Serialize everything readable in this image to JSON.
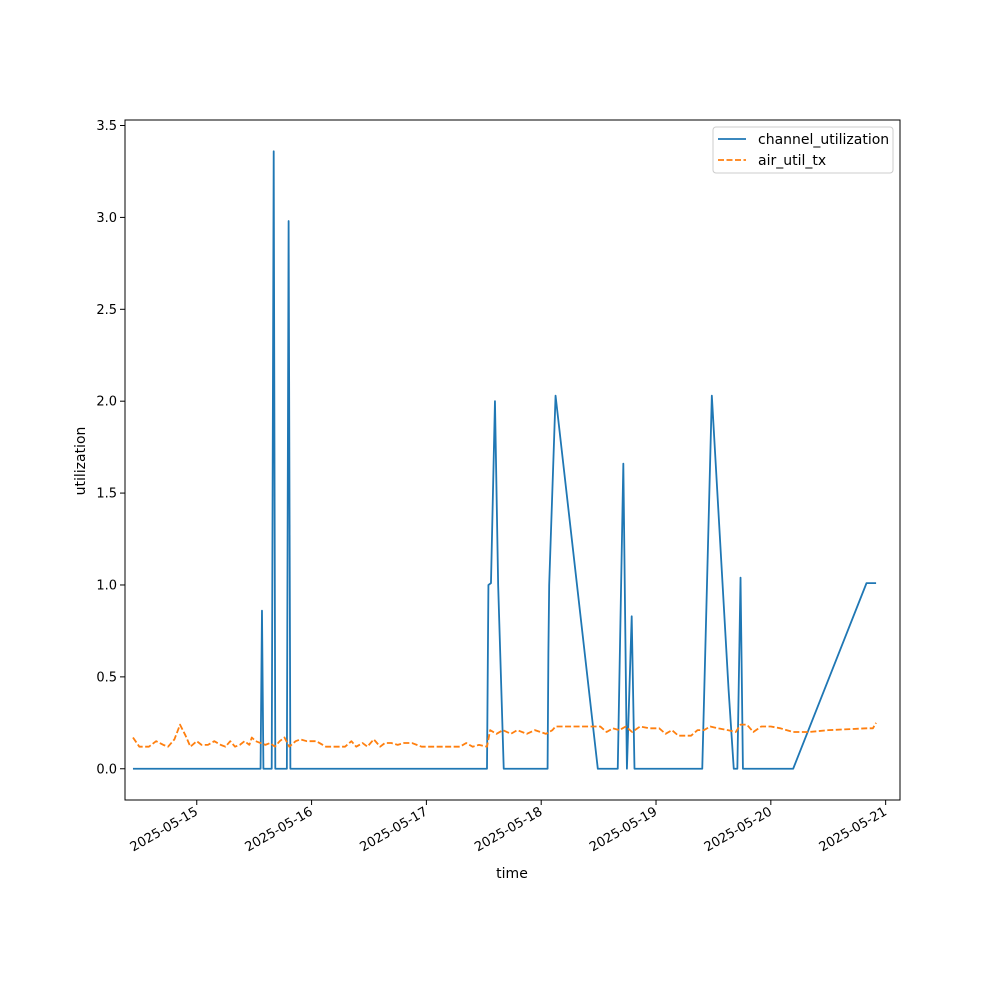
{
  "chart_data": {
    "type": "line",
    "xlabel": "time",
    "ylabel": "utilization",
    "xlim": [
      "2025-05-14T09:00",
      "2025-05-21T03:00"
    ],
    "ylim": [
      -0.17,
      3.53
    ],
    "x_ticks": [
      "2025-05-15",
      "2025-05-16",
      "2025-05-17",
      "2025-05-18",
      "2025-05-19",
      "2025-05-20",
      "2025-05-21"
    ],
    "y_ticks": [
      "0.0",
      "0.5",
      "1.0",
      "1.5",
      "2.0",
      "2.5",
      "3.0",
      "3.5"
    ],
    "legend": {
      "position": "top-right",
      "entries": [
        "channel_utilization",
        "air_util_tx"
      ]
    },
    "grid": false,
    "series": [
      {
        "name": "channel_utilization",
        "color": "#1f77b4",
        "style": "solid",
        "points": [
          [
            "2025-05-14T10:40",
            0.0
          ],
          [
            "2025-05-15T13:20",
            0.0
          ],
          [
            "2025-05-15T13:38",
            0.86
          ],
          [
            "2025-05-15T13:56",
            0.0
          ],
          [
            "2025-05-15T15:40",
            0.0
          ],
          [
            "2025-05-15T16:05",
            3.36
          ],
          [
            "2025-05-15T16:25",
            0.0
          ],
          [
            "2025-05-15T18:50",
            0.0
          ],
          [
            "2025-05-15T19:12",
            2.98
          ],
          [
            "2025-05-15T19:34",
            0.0
          ],
          [
            "2025-05-17T12:40",
            0.0
          ],
          [
            "2025-05-17T12:58",
            1.0
          ],
          [
            "2025-05-17T13:30",
            1.01
          ],
          [
            "2025-05-17T14:20",
            2.0
          ],
          [
            "2025-05-17T15:00",
            1.0
          ],
          [
            "2025-05-17T16:10",
            0.0
          ],
          [
            "2025-05-18T01:20",
            0.0
          ],
          [
            "2025-05-18T01:30",
            0.63
          ],
          [
            "2025-05-18T01:40",
            1.0
          ],
          [
            "2025-05-18T03:00",
            2.03
          ],
          [
            "2025-05-18T11:50",
            0.0
          ],
          [
            "2025-05-18T16:00",
            0.0
          ],
          [
            "2025-05-18T17:10",
            1.66
          ],
          [
            "2025-05-18T17:55",
            0.0
          ],
          [
            "2025-05-18T18:55",
            0.83
          ],
          [
            "2025-05-18T19:30",
            0.0
          ],
          [
            "2025-05-19T09:40",
            0.0
          ],
          [
            "2025-05-19T11:40",
            2.03
          ],
          [
            "2025-05-19T15:10",
            0.43
          ],
          [
            "2025-05-19T16:15",
            0.0
          ],
          [
            "2025-05-19T17:00",
            0.0
          ],
          [
            "2025-05-19T17:40",
            1.04
          ],
          [
            "2025-05-19T18:10",
            0.0
          ],
          [
            "2025-05-20T04:40",
            0.0
          ],
          [
            "2025-05-20T20:00",
            1.01
          ],
          [
            "2025-05-20T22:00",
            1.01
          ]
        ]
      },
      {
        "name": "air_util_tx",
        "color": "#ff7f0e",
        "style": "dashed",
        "points": [
          [
            "2025-05-14T10:40",
            0.17
          ],
          [
            "2025-05-14T12:00",
            0.12
          ],
          [
            "2025-05-14T14:00",
            0.12
          ],
          [
            "2025-05-14T15:30",
            0.15
          ],
          [
            "2025-05-14T17:00",
            0.13
          ],
          [
            "2025-05-14T18:00",
            0.12
          ],
          [
            "2025-05-14T19:20",
            0.16
          ],
          [
            "2025-05-14T20:30",
            0.24
          ],
          [
            "2025-05-14T21:40",
            0.18
          ],
          [
            "2025-05-14T22:40",
            0.12
          ],
          [
            "2025-05-15T00:00",
            0.15
          ],
          [
            "2025-05-15T01:00",
            0.13
          ],
          [
            "2025-05-15T02:20",
            0.13
          ],
          [
            "2025-05-15T03:40",
            0.15
          ],
          [
            "2025-05-15T05:00",
            0.13
          ],
          [
            "2025-05-15T06:00",
            0.12
          ],
          [
            "2025-05-15T07:00",
            0.15
          ],
          [
            "2025-05-15T08:00",
            0.12
          ],
          [
            "2025-05-15T09:00",
            0.13
          ],
          [
            "2025-05-15T10:00",
            0.15
          ],
          [
            "2025-05-15T11:00",
            0.13
          ],
          [
            "2025-05-15T11:30",
            0.17
          ],
          [
            "2025-05-15T12:20",
            0.15
          ],
          [
            "2025-05-15T13:20",
            0.14
          ],
          [
            "2025-05-15T14:20",
            0.13
          ],
          [
            "2025-05-15T15:20",
            0.14
          ],
          [
            "2025-05-15T16:20",
            0.12
          ],
          [
            "2025-05-15T17:20",
            0.15
          ],
          [
            "2025-05-15T18:20",
            0.17
          ],
          [
            "2025-05-15T19:20",
            0.12
          ],
          [
            "2025-05-15T20:40",
            0.15
          ],
          [
            "2025-05-15T21:40",
            0.16
          ],
          [
            "2025-05-15T23:00",
            0.15
          ],
          [
            "2025-05-16T01:00",
            0.15
          ],
          [
            "2025-05-16T03:00",
            0.12
          ],
          [
            "2025-05-16T05:00",
            0.12
          ],
          [
            "2025-05-16T07:00",
            0.12
          ],
          [
            "2025-05-16T08:20",
            0.15
          ],
          [
            "2025-05-16T09:20",
            0.12
          ],
          [
            "2025-05-16T10:40",
            0.14
          ],
          [
            "2025-05-16T11:40",
            0.12
          ],
          [
            "2025-05-16T13:00",
            0.16
          ],
          [
            "2025-05-16T14:20",
            0.12
          ],
          [
            "2025-05-16T15:20",
            0.14
          ],
          [
            "2025-05-16T16:40",
            0.14
          ],
          [
            "2025-05-16T18:00",
            0.13
          ],
          [
            "2025-05-16T19:20",
            0.14
          ],
          [
            "2025-05-16T21:00",
            0.14
          ],
          [
            "2025-05-16T23:00",
            0.12
          ],
          [
            "2025-05-17T03:00",
            0.12
          ],
          [
            "2025-05-17T07:00",
            0.12
          ],
          [
            "2025-05-17T08:20",
            0.14
          ],
          [
            "2025-05-17T09:40",
            0.12
          ],
          [
            "2025-05-17T11:00",
            0.13
          ],
          [
            "2025-05-17T12:40",
            0.12
          ],
          [
            "2025-05-17T13:20",
            0.21
          ],
          [
            "2025-05-17T14:40",
            0.19
          ],
          [
            "2025-05-17T16:00",
            0.21
          ],
          [
            "2025-05-17T17:40",
            0.19
          ],
          [
            "2025-05-17T19:00",
            0.21
          ],
          [
            "2025-05-17T21:00",
            0.19
          ],
          [
            "2025-05-17T22:40",
            0.21
          ],
          [
            "2025-05-18T01:00",
            0.19
          ],
          [
            "2025-05-18T02:20",
            0.21
          ],
          [
            "2025-05-18T03:00",
            0.23
          ],
          [
            "2025-05-18T05:00",
            0.23
          ],
          [
            "2025-05-18T07:00",
            0.23
          ],
          [
            "2025-05-18T09:00",
            0.23
          ],
          [
            "2025-05-18T11:00",
            0.23
          ],
          [
            "2025-05-18T12:20",
            0.23
          ],
          [
            "2025-05-18T13:40",
            0.2
          ],
          [
            "2025-05-18T15:00",
            0.22
          ],
          [
            "2025-05-18T16:20",
            0.21
          ],
          [
            "2025-05-18T17:40",
            0.23
          ],
          [
            "2025-05-18T19:00",
            0.2
          ],
          [
            "2025-05-18T20:40",
            0.23
          ],
          [
            "2025-05-18T22:40",
            0.22
          ],
          [
            "2025-05-19T00:40",
            0.22
          ],
          [
            "2025-05-19T02:00",
            0.19
          ],
          [
            "2025-05-19T03:20",
            0.21
          ],
          [
            "2025-05-19T04:40",
            0.18
          ],
          [
            "2025-05-19T06:00",
            0.18
          ],
          [
            "2025-05-19T07:20",
            0.18
          ],
          [
            "2025-05-19T08:40",
            0.21
          ],
          [
            "2025-05-19T10:00",
            0.21
          ],
          [
            "2025-05-19T11:20",
            0.23
          ],
          [
            "2025-05-19T13:00",
            0.22
          ],
          [
            "2025-05-19T15:00",
            0.21
          ],
          [
            "2025-05-19T16:40",
            0.2
          ],
          [
            "2025-05-19T17:40",
            0.24
          ],
          [
            "2025-05-19T19:00",
            0.24
          ],
          [
            "2025-05-19T20:20",
            0.2
          ],
          [
            "2025-05-19T22:00",
            0.23
          ],
          [
            "2025-05-20T00:00",
            0.23
          ],
          [
            "2025-05-20T02:00",
            0.22
          ],
          [
            "2025-05-20T04:40",
            0.2
          ],
          [
            "2025-05-20T08:00",
            0.2
          ],
          [
            "2025-05-20T12:00",
            0.21
          ],
          [
            "2025-05-20T20:00",
            0.22
          ],
          [
            "2025-05-20T21:20",
            0.22
          ],
          [
            "2025-05-20T22:00",
            0.25
          ]
        ]
      }
    ]
  }
}
